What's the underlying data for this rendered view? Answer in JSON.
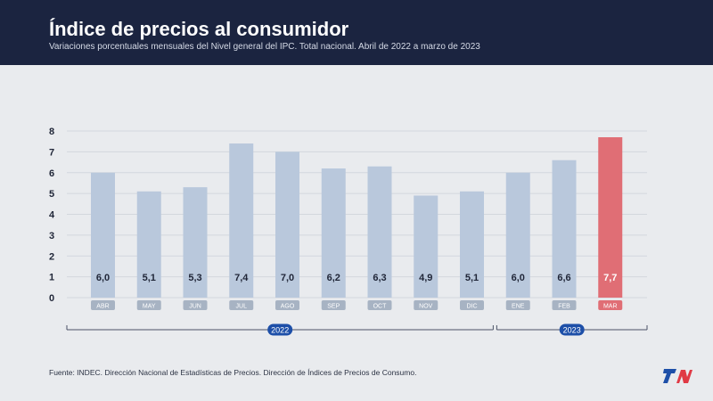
{
  "header": {
    "title": "Índice de precios al consumidor",
    "subtitle": "Variaciones porcentuales mensuales del Nivel general del IPC. Total nacional. Abril de 2022 a marzo de 2023"
  },
  "footer": {
    "source": "Fuente: INDEC. Dirección Nacional de Estadísticas de Precios. Dirección de Índices de Precios de Consumo.",
    "logo_text": "TN"
  },
  "colors": {
    "header_bg": "#1b2440",
    "bar": "#b9c8dc",
    "bar_highlight": "#e06e75",
    "pill_bg": "#a7b3c3",
    "year_pill": "#1d4fa8",
    "logo_blue": "#1d4fa8",
    "logo_red": "#e03a45"
  },
  "chart_data": {
    "type": "bar",
    "title": "Índice de precios al consumidor",
    "xlabel": "",
    "ylabel": "",
    "ylim": [
      0,
      8
    ],
    "yticks": [
      0,
      1,
      2,
      3,
      4,
      5,
      6,
      7,
      8
    ],
    "grid": true,
    "categories": [
      "ABR",
      "MAY",
      "JUN",
      "JUL",
      "AGO",
      "SEP",
      "OCT",
      "NOV",
      "DIC",
      "ENE",
      "FEB",
      "MAR"
    ],
    "values": [
      6.0,
      5.1,
      5.3,
      7.4,
      7.0,
      6.2,
      6.3,
      4.9,
      5.1,
      6.0,
      6.6,
      7.7
    ],
    "value_labels": [
      "6,0",
      "5,1",
      "5,3",
      "7,4",
      "7,0",
      "6,2",
      "6,3",
      "4,9",
      "5,1",
      "6,0",
      "6,6",
      "7,7"
    ],
    "highlight_index": 11,
    "year_groups": [
      {
        "label": "2022",
        "start": 0,
        "end": 8
      },
      {
        "label": "2023",
        "start": 9,
        "end": 11
      }
    ]
  }
}
